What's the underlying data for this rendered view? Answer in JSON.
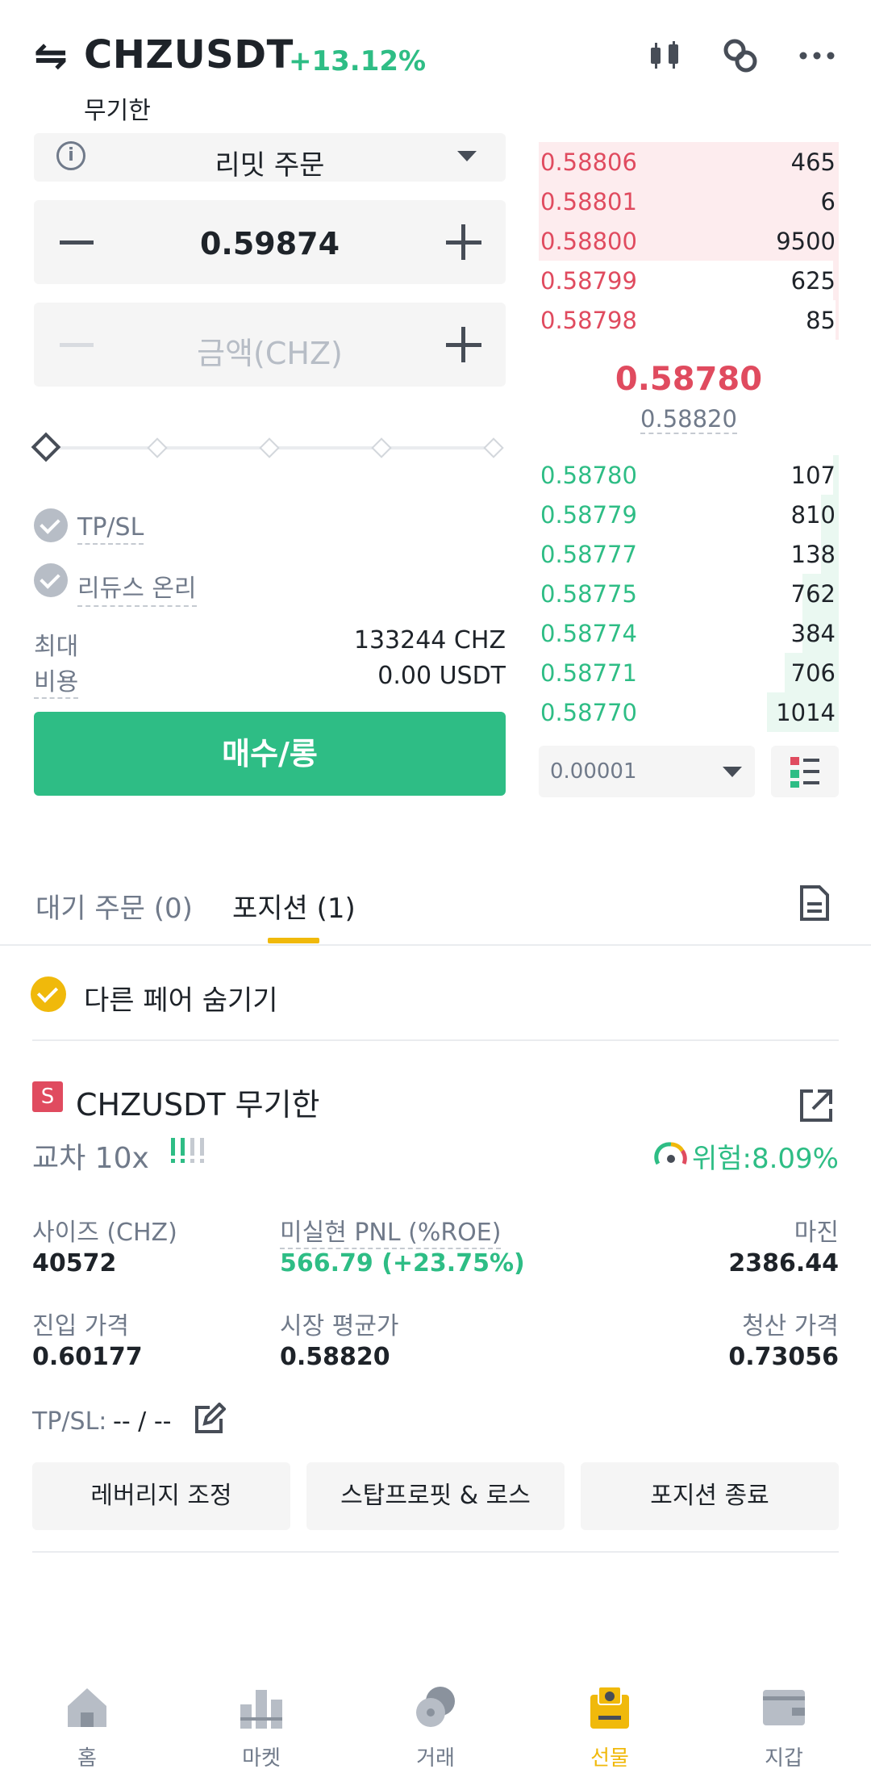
{
  "header": {
    "symbol": "CHZUSDT",
    "change": "+13.12%",
    "contract": "무기한",
    "swap_glyph": "⇋",
    "icons": [
      "candlestick-icon",
      "link-icon",
      "more-icon"
    ]
  },
  "order_form": {
    "order_type": "리밋 주문",
    "price_value": "0.59874",
    "amount_placeholder": "금액(CHZ)",
    "tpsl_label": "TP/SL",
    "reduce_only_label": "리듀스 온리",
    "max_label": "최대",
    "max_value": "133244 CHZ",
    "cost_label": "비용",
    "cost_value": "0.00 USDT",
    "buy_label": "매수/롱",
    "slider_percent": 0
  },
  "order_book": {
    "asks": [
      {
        "price": "0.58806",
        "qty": "465",
        "depth": 1.0
      },
      {
        "price": "0.58801",
        "qty": "6",
        "depth": 1.0
      },
      {
        "price": "0.58800",
        "qty": "9500",
        "depth": 1.0
      },
      {
        "price": "0.58799",
        "qty": "625",
        "depth": 0.02
      },
      {
        "price": "0.58798",
        "qty": "85",
        "depth": 0.01
      }
    ],
    "last_price": "0.58780",
    "mark_price": "0.58820",
    "bids": [
      {
        "price": "0.58780",
        "qty": "107",
        "depth": 0.02
      },
      {
        "price": "0.58779",
        "qty": "810",
        "depth": 0.06
      },
      {
        "price": "0.58777",
        "qty": "138",
        "depth": 0.06
      },
      {
        "price": "0.58775",
        "qty": "762",
        "depth": 0.12
      },
      {
        "price": "0.58774",
        "qty": "384",
        "depth": 0.12
      },
      {
        "price": "0.58771",
        "qty": "706",
        "depth": 0.18
      },
      {
        "price": "0.58770",
        "qty": "1014",
        "depth": 0.24
      }
    ],
    "tick_size": "0.00001",
    "colors": {
      "ask": "#e04b5f",
      "bid": "#2ebd85"
    }
  },
  "tabs": {
    "open_orders": "대기 주문 (0)",
    "positions": "포지션 (1)"
  },
  "hide_other_pairs": "다른 페어 숨기기",
  "position": {
    "badge": "S",
    "title": "CHZUSDT 무기한",
    "margin_mode": "교차 10x",
    "risk": "위험:8.09%",
    "size_label": "사이즈 (CHZ)",
    "size_value": "40572",
    "pnl_label": "미실현 PNL (%ROE)",
    "pnl_value": "566.79 (+23.75%)",
    "margin_label": "마진",
    "margin_value": "2386.44",
    "entry_label": "진입 가격",
    "entry_value": "0.60177",
    "mark_label": "시장 평균가",
    "mark_value": "0.58820",
    "liq_label": "청산 가격",
    "liq_value": "0.73056",
    "tpsl_label": "TP/SL:",
    "tpsl_value": "-- / --",
    "buttons": {
      "leverage": "레버리지 조정",
      "tpsl": "스탑프로핏 & 로스",
      "close": "포지션 종료"
    }
  },
  "bottom_nav": [
    {
      "label": "홈",
      "icon": "home-icon"
    },
    {
      "label": "마켓",
      "icon": "market-icon"
    },
    {
      "label": "거래",
      "icon": "trade-icon"
    },
    {
      "label": "선물",
      "icon": "futures-icon",
      "active": true
    },
    {
      "label": "지갑",
      "icon": "wallet-icon"
    }
  ]
}
